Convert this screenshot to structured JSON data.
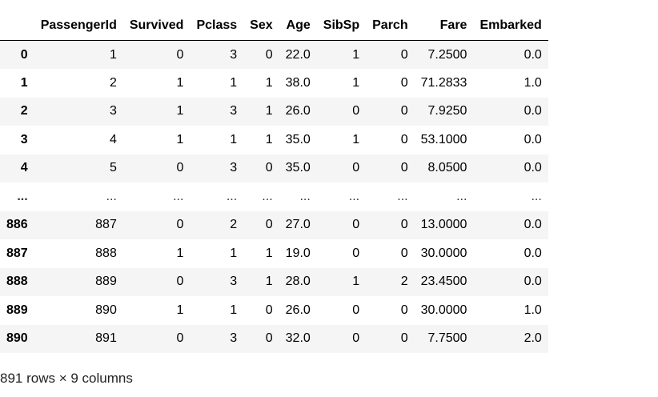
{
  "table": {
    "columns": [
      "PassengerId",
      "Survived",
      "Pclass",
      "Sex",
      "Age",
      "SibSp",
      "Parch",
      "Fare",
      "Embarked"
    ],
    "rows": [
      {
        "index": "0",
        "cells": [
          "1",
          "0",
          "3",
          "0",
          "22.0",
          "1",
          "0",
          "7.2500",
          "0.0"
        ]
      },
      {
        "index": "1",
        "cells": [
          "2",
          "1",
          "1",
          "1",
          "38.0",
          "1",
          "0",
          "71.2833",
          "1.0"
        ]
      },
      {
        "index": "2",
        "cells": [
          "3",
          "1",
          "3",
          "1",
          "26.0",
          "0",
          "0",
          "7.9250",
          "0.0"
        ]
      },
      {
        "index": "3",
        "cells": [
          "4",
          "1",
          "1",
          "1",
          "35.0",
          "1",
          "0",
          "53.1000",
          "0.0"
        ]
      },
      {
        "index": "4",
        "cells": [
          "5",
          "0",
          "3",
          "0",
          "35.0",
          "0",
          "0",
          "8.0500",
          "0.0"
        ]
      },
      {
        "index": "...",
        "cells": [
          "...",
          "...",
          "...",
          "...",
          "...",
          "...",
          "...",
          "...",
          "..."
        ]
      },
      {
        "index": "886",
        "cells": [
          "887",
          "0",
          "2",
          "0",
          "27.0",
          "0",
          "0",
          "13.0000",
          "0.0"
        ]
      },
      {
        "index": "887",
        "cells": [
          "888",
          "1",
          "1",
          "1",
          "19.0",
          "0",
          "0",
          "30.0000",
          "0.0"
        ]
      },
      {
        "index": "888",
        "cells": [
          "889",
          "0",
          "3",
          "1",
          "28.0",
          "1",
          "2",
          "23.4500",
          "0.0"
        ]
      },
      {
        "index": "889",
        "cells": [
          "890",
          "1",
          "1",
          "0",
          "26.0",
          "0",
          "0",
          "30.0000",
          "1.0"
        ]
      },
      {
        "index": "890",
        "cells": [
          "891",
          "0",
          "3",
          "0",
          "32.0",
          "0",
          "0",
          "7.7500",
          "2.0"
        ]
      }
    ]
  },
  "summary": "891 rows × 9 columns",
  "colors": {
    "stripe": "#f5f5f5",
    "header_rule": "#000000",
    "text": "#000000"
  }
}
